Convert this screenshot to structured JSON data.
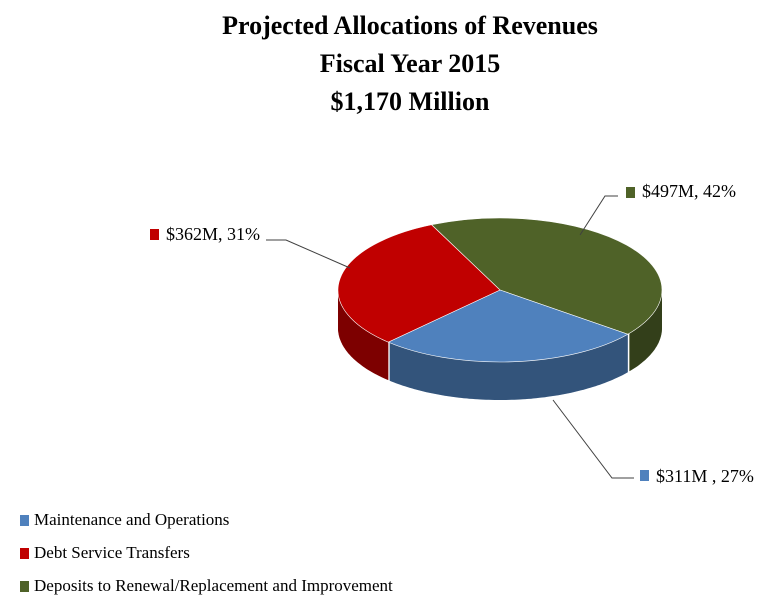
{
  "chart_data": {
    "type": "pie",
    "title": "Projected Allocations of Revenues",
    "subtitle": [
      "Fiscal Year 2015",
      "$1,170 Million"
    ],
    "categories": [
      "Maintenance and Operations",
      "Debt Service Transfers",
      "Deposits to Renewal/Replacement and Improvement"
    ],
    "values": [
      311,
      362,
      497
    ],
    "value_labels": [
      "$311M , 27%",
      "$362M, 31%",
      "$497M, 42%"
    ],
    "colors": [
      "#4f81bd",
      "#c00000",
      "#4f6228"
    ],
    "legend": "bottom-left"
  }
}
